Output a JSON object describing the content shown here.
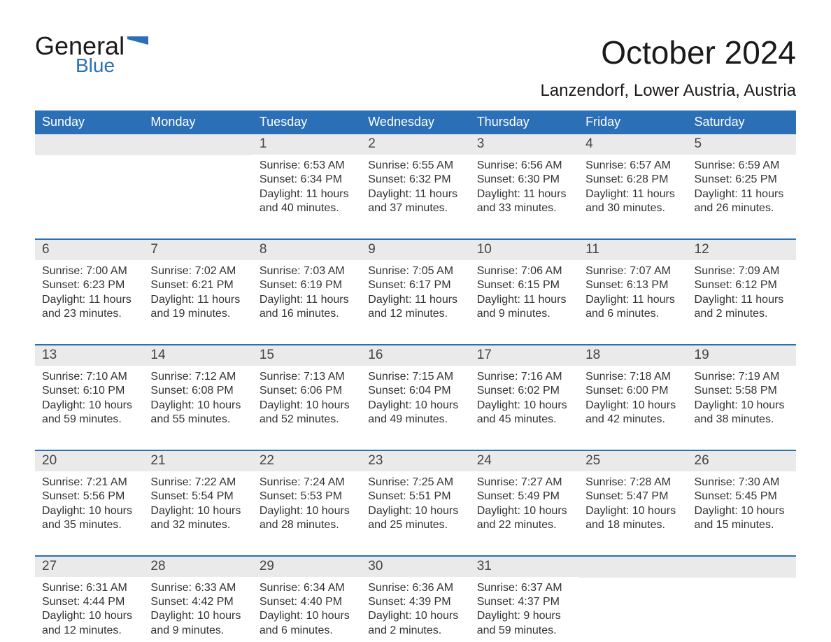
{
  "logo": {
    "word1": "General",
    "word2": "Blue",
    "flag_fill": "#2b6fb6"
  },
  "title": "October 2024",
  "subtitle": "Lanzendorf, Lower Austria, Austria",
  "colors": {
    "header_bg": "#2b6fb6",
    "header_text": "#ffffff",
    "daynum_bg": "#eaeaea",
    "text": "#333333",
    "rule": "#2b6fb6",
    "background": "#ffffff"
  },
  "typography": {
    "title_fontsize": 46,
    "subtitle_fontsize": 24,
    "dow_fontsize": 18,
    "daynum_fontsize": 19,
    "body_fontsize": 16
  },
  "days_of_week": [
    "Sunday",
    "Monday",
    "Tuesday",
    "Wednesday",
    "Thursday",
    "Friday",
    "Saturday"
  ],
  "labels": {
    "sunrise": "Sunrise:",
    "sunset": "Sunset:",
    "daylight": "Daylight:"
  },
  "weeks": [
    [
      null,
      null,
      {
        "n": "1",
        "sunrise": "6:53 AM",
        "sunset": "6:34 PM",
        "daylight": "11 hours and 40 minutes."
      },
      {
        "n": "2",
        "sunrise": "6:55 AM",
        "sunset": "6:32 PM",
        "daylight": "11 hours and 37 minutes."
      },
      {
        "n": "3",
        "sunrise": "6:56 AM",
        "sunset": "6:30 PM",
        "daylight": "11 hours and 33 minutes."
      },
      {
        "n": "4",
        "sunrise": "6:57 AM",
        "sunset": "6:28 PM",
        "daylight": "11 hours and 30 minutes."
      },
      {
        "n": "5",
        "sunrise": "6:59 AM",
        "sunset": "6:25 PM",
        "daylight": "11 hours and 26 minutes."
      }
    ],
    [
      {
        "n": "6",
        "sunrise": "7:00 AM",
        "sunset": "6:23 PM",
        "daylight": "11 hours and 23 minutes."
      },
      {
        "n": "7",
        "sunrise": "7:02 AM",
        "sunset": "6:21 PM",
        "daylight": "11 hours and 19 minutes."
      },
      {
        "n": "8",
        "sunrise": "7:03 AM",
        "sunset": "6:19 PM",
        "daylight": "11 hours and 16 minutes."
      },
      {
        "n": "9",
        "sunrise": "7:05 AM",
        "sunset": "6:17 PM",
        "daylight": "11 hours and 12 minutes."
      },
      {
        "n": "10",
        "sunrise": "7:06 AM",
        "sunset": "6:15 PM",
        "daylight": "11 hours and 9 minutes."
      },
      {
        "n": "11",
        "sunrise": "7:07 AM",
        "sunset": "6:13 PM",
        "daylight": "11 hours and 6 minutes."
      },
      {
        "n": "12",
        "sunrise": "7:09 AM",
        "sunset": "6:12 PM",
        "daylight": "11 hours and 2 minutes."
      }
    ],
    [
      {
        "n": "13",
        "sunrise": "7:10 AM",
        "sunset": "6:10 PM",
        "daylight": "10 hours and 59 minutes."
      },
      {
        "n": "14",
        "sunrise": "7:12 AM",
        "sunset": "6:08 PM",
        "daylight": "10 hours and 55 minutes."
      },
      {
        "n": "15",
        "sunrise": "7:13 AM",
        "sunset": "6:06 PM",
        "daylight": "10 hours and 52 minutes."
      },
      {
        "n": "16",
        "sunrise": "7:15 AM",
        "sunset": "6:04 PM",
        "daylight": "10 hours and 49 minutes."
      },
      {
        "n": "17",
        "sunrise": "7:16 AM",
        "sunset": "6:02 PM",
        "daylight": "10 hours and 45 minutes."
      },
      {
        "n": "18",
        "sunrise": "7:18 AM",
        "sunset": "6:00 PM",
        "daylight": "10 hours and 42 minutes."
      },
      {
        "n": "19",
        "sunrise": "7:19 AM",
        "sunset": "5:58 PM",
        "daylight": "10 hours and 38 minutes."
      }
    ],
    [
      {
        "n": "20",
        "sunrise": "7:21 AM",
        "sunset": "5:56 PM",
        "daylight": "10 hours and 35 minutes."
      },
      {
        "n": "21",
        "sunrise": "7:22 AM",
        "sunset": "5:54 PM",
        "daylight": "10 hours and 32 minutes."
      },
      {
        "n": "22",
        "sunrise": "7:24 AM",
        "sunset": "5:53 PM",
        "daylight": "10 hours and 28 minutes."
      },
      {
        "n": "23",
        "sunrise": "7:25 AM",
        "sunset": "5:51 PM",
        "daylight": "10 hours and 25 minutes."
      },
      {
        "n": "24",
        "sunrise": "7:27 AM",
        "sunset": "5:49 PM",
        "daylight": "10 hours and 22 minutes."
      },
      {
        "n": "25",
        "sunrise": "7:28 AM",
        "sunset": "5:47 PM",
        "daylight": "10 hours and 18 minutes."
      },
      {
        "n": "26",
        "sunrise": "7:30 AM",
        "sunset": "5:45 PM",
        "daylight": "10 hours and 15 minutes."
      }
    ],
    [
      {
        "n": "27",
        "sunrise": "6:31 AM",
        "sunset": "4:44 PM",
        "daylight": "10 hours and 12 minutes."
      },
      {
        "n": "28",
        "sunrise": "6:33 AM",
        "sunset": "4:42 PM",
        "daylight": "10 hours and 9 minutes."
      },
      {
        "n": "29",
        "sunrise": "6:34 AM",
        "sunset": "4:40 PM",
        "daylight": "10 hours and 6 minutes."
      },
      {
        "n": "30",
        "sunrise": "6:36 AM",
        "sunset": "4:39 PM",
        "daylight": "10 hours and 2 minutes."
      },
      {
        "n": "31",
        "sunrise": "6:37 AM",
        "sunset": "4:37 PM",
        "daylight": "9 hours and 59 minutes."
      },
      null,
      null
    ]
  ]
}
